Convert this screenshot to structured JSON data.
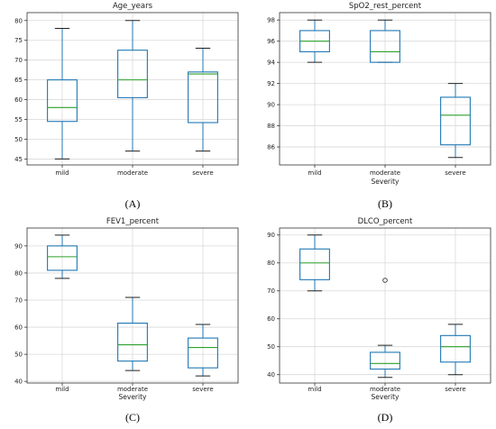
{
  "chart_data": [
    {
      "id": "A",
      "panel_label": "(A)",
      "type": "box",
      "title": "Age_years",
      "xlabel": "",
      "ylabel": "",
      "categories": [
        "mild",
        "moderate",
        "severe"
      ],
      "yticks": [
        45,
        50,
        55,
        60,
        65,
        70,
        75,
        80
      ],
      "ylim": [
        43.5,
        82
      ],
      "boxes": [
        {
          "min": 45,
          "q1": 54.5,
          "median": 58,
          "q3": 65,
          "max": 78
        },
        {
          "min": 47,
          "q1": 60.5,
          "median": 65,
          "q3": 72.5,
          "max": 80
        },
        {
          "min": 47,
          "q1": 54.2,
          "median": 66.5,
          "q3": 67,
          "max": 73
        }
      ],
      "outliers": [
        [],
        [],
        []
      ],
      "grid": true
    },
    {
      "id": "B",
      "panel_label": "(B)",
      "type": "box",
      "title": "SpO2_rest_percent",
      "xlabel": "Severity",
      "ylabel": "",
      "categories": [
        "mild",
        "moderate",
        "severe"
      ],
      "yticks": [
        86,
        88,
        90,
        92,
        94,
        96,
        98
      ],
      "ylim": [
        84.3,
        98.7
      ],
      "boxes": [
        {
          "min": 94,
          "q1": 95,
          "median": 96,
          "q3": 97,
          "max": 98
        },
        {
          "min": 94,
          "q1": 94,
          "median": 95,
          "q3": 97,
          "max": 98
        },
        {
          "min": 85,
          "q1": 86.2,
          "median": 89,
          "q3": 90.7,
          "max": 92
        }
      ],
      "outliers": [
        [],
        [],
        []
      ],
      "grid": true
    },
    {
      "id": "C",
      "panel_label": "(C)",
      "type": "box",
      "title": "FEV1_percent",
      "xlabel": "Severity",
      "ylabel": "",
      "categories": [
        "mild",
        "moderate",
        "severe"
      ],
      "yticks": [
        40,
        50,
        60,
        70,
        80,
        90
      ],
      "ylim": [
        39.4,
        96.6
      ],
      "boxes": [
        {
          "min": 78,
          "q1": 81,
          "median": 86,
          "q3": 90,
          "max": 94
        },
        {
          "min": 44,
          "q1": 47.5,
          "median": 53.5,
          "q3": 61.5,
          "max": 71
        },
        {
          "min": 42,
          "q1": 45,
          "median": 52.5,
          "q3": 56,
          "max": 61
        }
      ],
      "outliers": [
        [],
        [],
        []
      ],
      "grid": true
    },
    {
      "id": "D",
      "panel_label": "(D)",
      "type": "box",
      "title": "DLCO_percent",
      "xlabel": "Severity",
      "ylabel": "",
      "categories": [
        "mild",
        "moderate",
        "severe"
      ],
      "yticks": [
        40,
        50,
        60,
        70,
        80,
        90
      ],
      "ylim": [
        37,
        92.5
      ],
      "boxes": [
        {
          "min": 70,
          "q1": 74,
          "median": 80,
          "q3": 85,
          "max": 90
        },
        {
          "min": 39,
          "q1": 42,
          "median": 44,
          "q3": 48,
          "max": 50.5
        },
        {
          "min": 40,
          "q1": 44.5,
          "median": 50,
          "q3": 54,
          "max": 58
        }
      ],
      "outliers": [
        [],
        [
          73.8
        ],
        []
      ],
      "grid": true
    }
  ]
}
